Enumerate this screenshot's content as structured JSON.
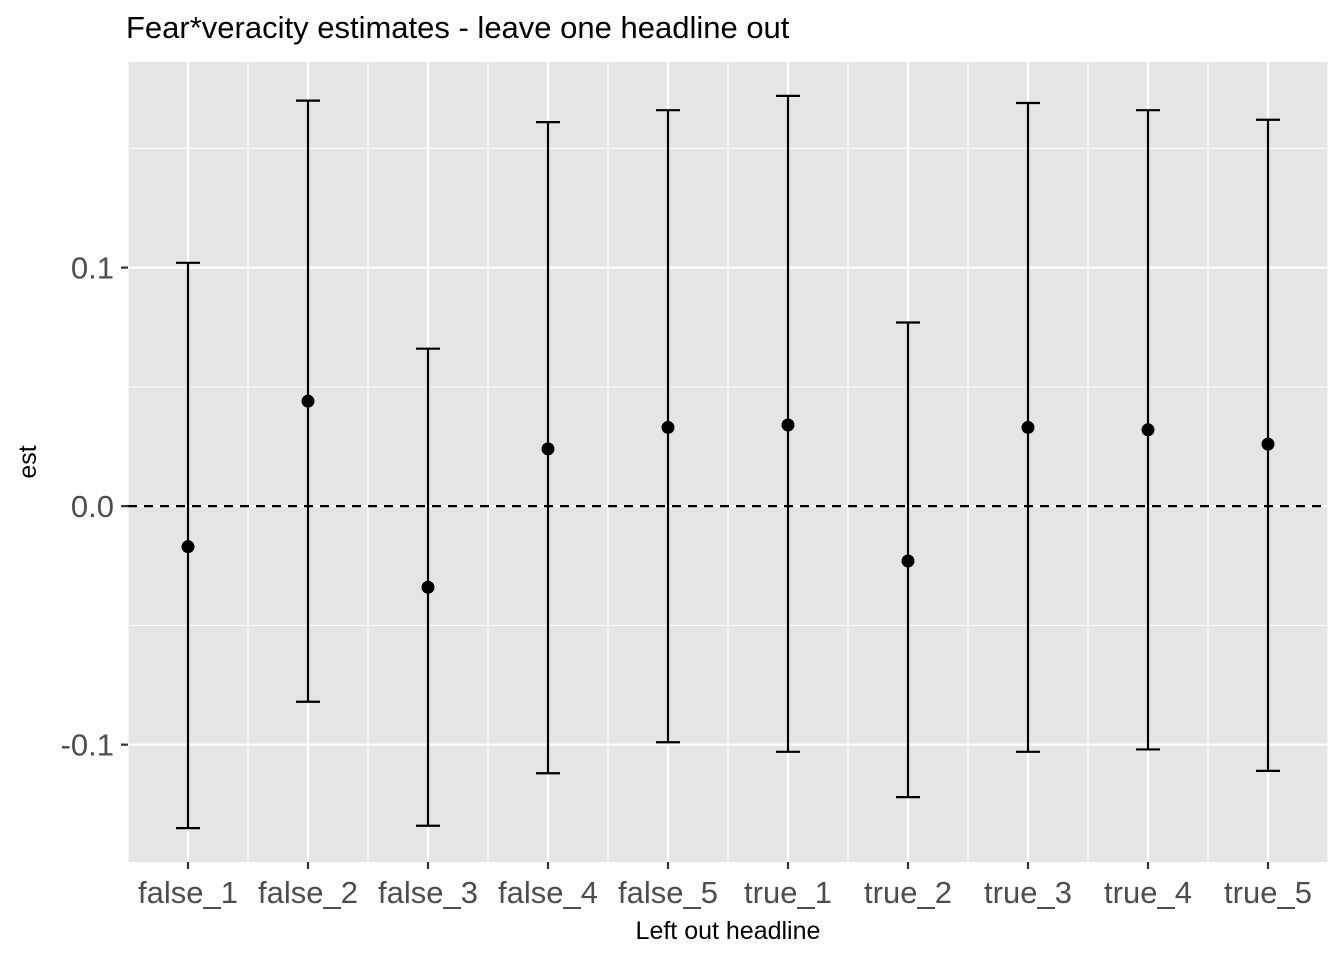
{
  "chart_data": {
    "type": "errorbar",
    "title": "Fear*veracity estimates - leave one headline out",
    "xlabel": "Left out headline",
    "ylabel": "est",
    "categories": [
      "false_1",
      "false_2",
      "false_3",
      "false_4",
      "false_5",
      "true_1",
      "true_2",
      "true_3",
      "true_4",
      "true_5"
    ],
    "series": [
      {
        "estimate": [
          -0.017,
          0.044,
          -0.034,
          0.024,
          0.033,
          0.034,
          -0.023,
          0.033,
          0.032,
          0.026
        ],
        "lower": [
          -0.135,
          -0.082,
          -0.134,
          -0.112,
          -0.099,
          -0.103,
          -0.122,
          -0.103,
          -0.102,
          -0.111
        ],
        "upper": [
          0.102,
          0.17,
          0.066,
          0.161,
          0.166,
          0.172,
          0.077,
          0.169,
          0.166,
          0.162
        ]
      }
    ],
    "y_ticks": [
      "-0.1",
      "0.0",
      "0.1"
    ],
    "y_tick_values": [
      -0.1,
      0.0,
      0.1
    ],
    "ylim": [
      -0.1492,
      0.1862
    ],
    "reference_line": 0,
    "reference_line_style": "dashed",
    "grid": true,
    "panel_background": "#e5e5e5",
    "gridline_color": "#ffffff",
    "mark_color": "#000000"
  }
}
